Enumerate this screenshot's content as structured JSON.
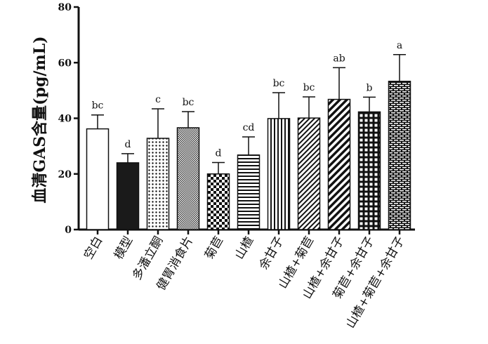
{
  "chart_data": {
    "type": "bar",
    "ylabel": "血清GAS含量(pg/mL)",
    "xlabel": "",
    "title": "",
    "ylim": [
      0,
      80
    ],
    "yticks": [
      0,
      20,
      40,
      60,
      80
    ],
    "categories": [
      "空白",
      "模型",
      "多潘立酮",
      "健胃消食片",
      "菊苣",
      "山楂",
      "余甘子",
      "山楂+菊苣",
      "山楂+余甘子",
      "菊苣+余甘子",
      "山楂+菊苣+余甘子"
    ],
    "values": [
      36.2,
      24.0,
      32.8,
      36.6,
      20.0,
      26.8,
      39.9,
      40.1,
      46.8,
      42.3,
      53.3
    ],
    "errors": [
      5.0,
      3.3,
      10.6,
      5.8,
      4.1,
      6.5,
      9.3,
      7.6,
      11.4,
      5.3,
      9.6
    ],
    "significance": [
      "bc",
      "d",
      "c",
      "bc",
      "d",
      "cd",
      "bc",
      "bc",
      "ab",
      "b",
      "a"
    ],
    "patterns": [
      "white",
      "solid-black",
      "dots",
      "fine-crosshatch",
      "checker",
      "horizontal-lines",
      "vertical-lines",
      "diagonal-dense",
      "diagonal-bold",
      "grid",
      "brick"
    ],
    "grid": false,
    "legend": "none"
  }
}
